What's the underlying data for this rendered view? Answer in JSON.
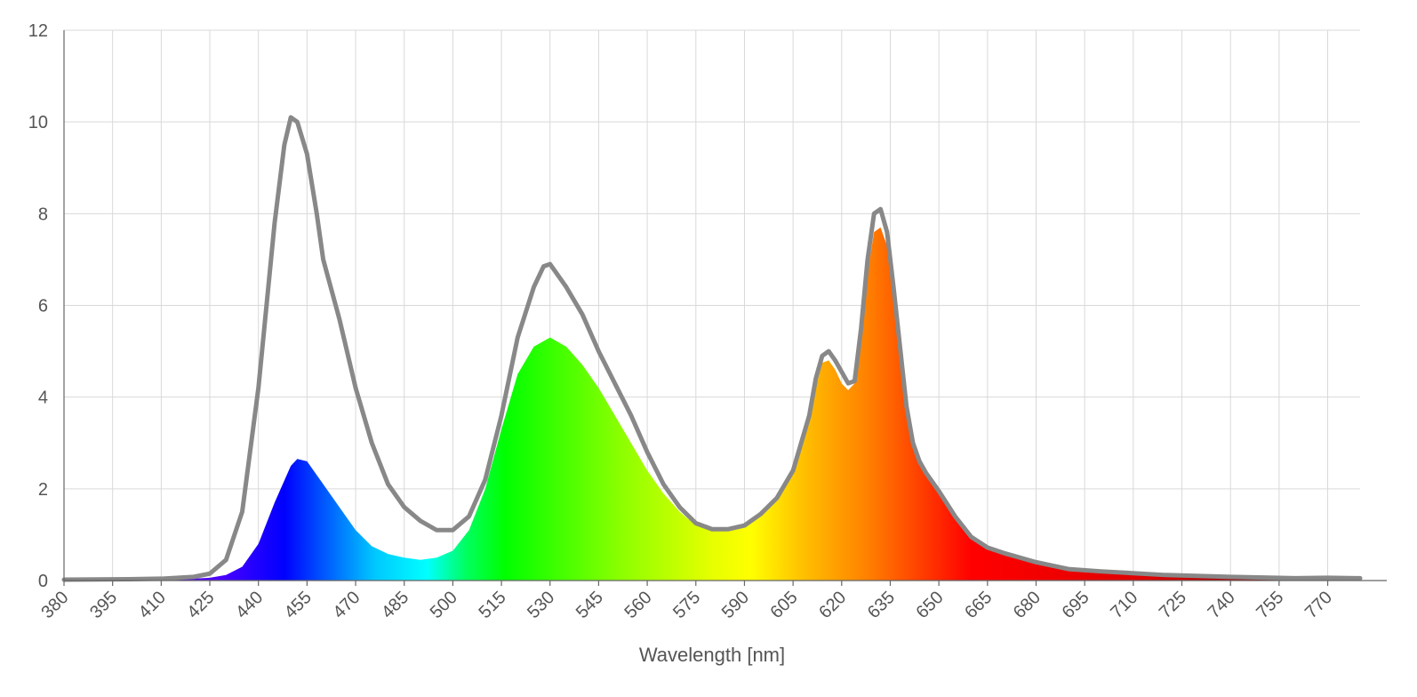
{
  "chart_data": {
    "type": "area",
    "title": "",
    "xlabel": "Wavelength [nm]",
    "ylabel": "",
    "xlim": [
      380,
      780
    ],
    "ylim": [
      0,
      12
    ],
    "x_ticks": [
      380,
      395,
      410,
      425,
      440,
      455,
      470,
      485,
      500,
      515,
      530,
      545,
      560,
      575,
      590,
      605,
      620,
      635,
      650,
      665,
      680,
      695,
      710,
      725,
      740,
      755,
      770
    ],
    "y_ticks": [
      0,
      2,
      4,
      6,
      8,
      10,
      12
    ],
    "grid": true,
    "legend": "none",
    "series": [
      {
        "kind": "filled-area-spectrum",
        "fill": "visible-spectrum-gradient",
        "x": [
          380,
          400,
          420,
          425,
          430,
          435,
          440,
          445,
          450,
          452,
          455,
          460,
          465,
          470,
          475,
          480,
          485,
          490,
          495,
          500,
          505,
          510,
          515,
          520,
          525,
          530,
          535,
          540,
          545,
          550,
          555,
          560,
          565,
          570,
          575,
          580,
          585,
          590,
          595,
          600,
          605,
          610,
          612,
          614,
          616,
          618,
          620,
          622,
          624,
          626,
          628,
          630,
          632,
          634,
          636,
          638,
          640,
          642,
          644,
          646,
          648,
          650,
          655,
          660,
          665,
          670,
          680,
          690,
          700,
          720,
          740,
          760,
          770,
          780
        ],
        "y": [
          0.02,
          0.03,
          0.04,
          0.06,
          0.12,
          0.3,
          0.8,
          1.7,
          2.5,
          2.65,
          2.6,
          2.1,
          1.6,
          1.1,
          0.75,
          0.58,
          0.5,
          0.45,
          0.5,
          0.65,
          1.1,
          2.0,
          3.3,
          4.5,
          5.1,
          5.3,
          5.1,
          4.7,
          4.2,
          3.6,
          3.0,
          2.4,
          1.9,
          1.5,
          1.2,
          1.1,
          1.12,
          1.2,
          1.45,
          1.8,
          2.4,
          3.5,
          4.2,
          4.75,
          4.8,
          4.6,
          4.3,
          4.15,
          4.3,
          5.3,
          6.7,
          7.6,
          7.7,
          7.3,
          6.2,
          4.9,
          3.7,
          2.9,
          2.55,
          2.35,
          2.15,
          1.95,
          1.4,
          0.95,
          0.72,
          0.6,
          0.4,
          0.25,
          0.2,
          0.12,
          0.08,
          0.05,
          0.06,
          0.05
        ]
      },
      {
        "kind": "line",
        "color": "#888888",
        "x": [
          380,
          400,
          410,
          420,
          425,
          430,
          435,
          440,
          445,
          448,
          450,
          452,
          455,
          458,
          460,
          465,
          470,
          475,
          480,
          485,
          490,
          495,
          500,
          505,
          510,
          515,
          520,
          525,
          528,
          530,
          535,
          540,
          545,
          550,
          555,
          560,
          565,
          570,
          575,
          580,
          585,
          590,
          595,
          600,
          605,
          610,
          612,
          614,
          616,
          618,
          620,
          622,
          624,
          626,
          628,
          630,
          632,
          634,
          636,
          638,
          640,
          642,
          644,
          646,
          648,
          650,
          655,
          660,
          665,
          670,
          680,
          690,
          700,
          720,
          740,
          760,
          770,
          780
        ],
        "y": [
          0.02,
          0.03,
          0.04,
          0.08,
          0.15,
          0.45,
          1.5,
          4.2,
          7.8,
          9.5,
          10.1,
          10.0,
          9.3,
          8.0,
          7.0,
          5.7,
          4.2,
          3.0,
          2.1,
          1.6,
          1.3,
          1.1,
          1.1,
          1.4,
          2.2,
          3.6,
          5.3,
          6.4,
          6.85,
          6.9,
          6.4,
          5.8,
          5.0,
          4.3,
          3.6,
          2.8,
          2.1,
          1.6,
          1.25,
          1.12,
          1.12,
          1.2,
          1.45,
          1.8,
          2.4,
          3.6,
          4.4,
          4.9,
          5.0,
          4.8,
          4.55,
          4.3,
          4.35,
          5.5,
          7.0,
          8.0,
          8.1,
          7.6,
          6.4,
          5.1,
          3.8,
          3.0,
          2.6,
          2.35,
          2.15,
          1.95,
          1.4,
          0.95,
          0.72,
          0.6,
          0.4,
          0.25,
          0.2,
          0.12,
          0.08,
          0.05,
          0.06,
          0.05
        ]
      }
    ]
  }
}
